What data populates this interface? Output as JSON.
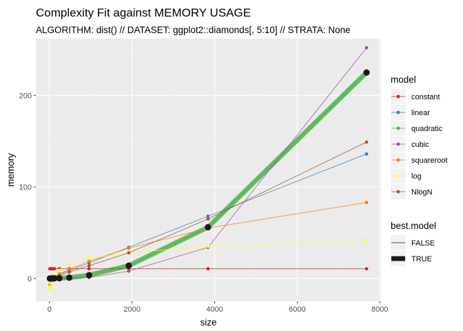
{
  "chart_data": {
    "type": "line",
    "title": "Complexity Fit against MEMORY USAGE",
    "subtitle": "ALGORITHM: dist() // DATASET: ggplot2::diamonds[, 5:10] // STRATA: None",
    "xlabel": "size",
    "ylabel": "memory",
    "xlim": [
      -330,
      8030
    ],
    "ylim": [
      -25,
      262
    ],
    "x_ticks": [
      0,
      2000,
      4000,
      6000,
      8000
    ],
    "y_ticks": [
      0,
      100,
      200
    ],
    "grid": true,
    "legend_position": "right",
    "x": [
      10,
      20,
      40,
      60,
      80,
      120,
      240,
      480,
      960,
      1920,
      3840,
      7680
    ],
    "series": [
      {
        "name": "constant",
        "color": "#E41A1C",
        "values": [
          10.6,
          10.6,
          10.6,
          10.6,
          10.6,
          10.6,
          10.6,
          10.6,
          10.6,
          10.6,
          10.6,
          10.6
        ]
      },
      {
        "name": "linear",
        "color": "#377EB8",
        "values": [
          0.5,
          0.7,
          1.0,
          1.4,
          1.7,
          2.4,
          4.5,
          8.6,
          17.0,
          34.0,
          68.0,
          136.0
        ]
      },
      {
        "name": "quadratic",
        "color": "#4DAF4A",
        "values": [
          0.0,
          0.0,
          0.0,
          0.0,
          0.1,
          0.1,
          0.2,
          0.9,
          3.6,
          14.0,
          56.0,
          225.0
        ]
      },
      {
        "name": "cubic",
        "color": "#984EA3",
        "values": [
          0.0,
          0.0,
          0.0,
          0.0,
          0.0,
          0.0,
          0.0,
          0.1,
          1.0,
          8.0,
          34.0,
          252.0
        ]
      },
      {
        "name": "squareroot",
        "color": "#FF7F00",
        "values": [
          -8.0,
          -6.0,
          -3.5,
          -2.0,
          -0.5,
          1.5,
          5.0,
          10.0,
          19.0,
          33.0,
          55.0,
          83.0
        ]
      },
      {
        "name": "log",
        "color": "#FFFF33",
        "values": [
          -13.0,
          -9.0,
          -5.0,
          -2.0,
          0.0,
          3.5,
          9.0,
          15.5,
          22.0,
          28.0,
          35.0,
          41.0
        ]
      },
      {
        "name": "NlogN",
        "color": "#A65628",
        "values": [
          0.5,
          0.7,
          1.0,
          1.3,
          1.6,
          2.0,
          3.0,
          7.0,
          14.0,
          28.0,
          65.0,
          149.0
        ]
      }
    ],
    "best_model": "quadratic",
    "best_model_color": "#66BD63",
    "observed_color": "#1A1A1A",
    "legend": {
      "model_title": "model",
      "best_title": "best.model",
      "best_items": [
        "FALSE",
        "TRUE"
      ]
    }
  }
}
